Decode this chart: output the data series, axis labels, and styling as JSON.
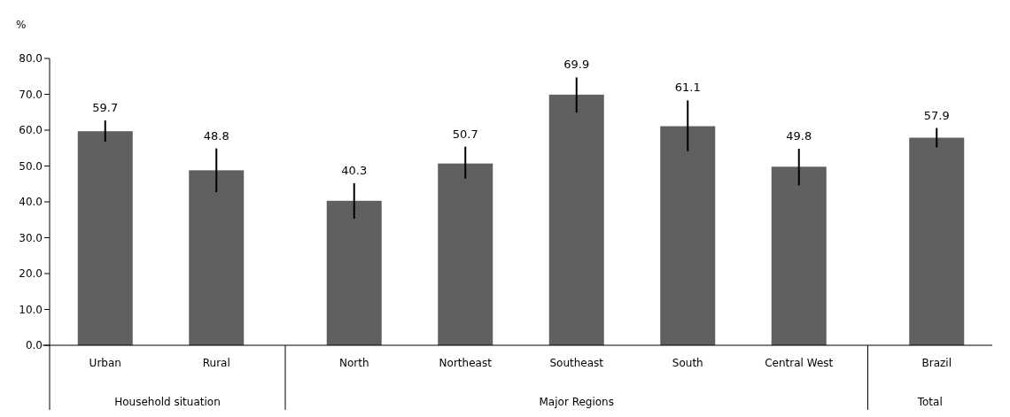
{
  "chart_data": {
    "type": "bar",
    "ylabel": "%",
    "categories": [
      "Urban",
      "Rural",
      "North",
      "Northeast",
      "Southeast",
      "South",
      "Central West",
      "Brazil"
    ],
    "values": [
      59.7,
      48.8,
      40.3,
      50.7,
      69.9,
      61.1,
      49.8,
      57.9
    ],
    "errors": [
      [
        56.8,
        62.7
      ],
      [
        42.7,
        54.9
      ],
      [
        35.3,
        45.2
      ],
      [
        46.5,
        55.4
      ],
      [
        64.9,
        74.7
      ],
      [
        54.1,
        68.3
      ],
      [
        44.6,
        54.8
      ],
      [
        55.2,
        60.6
      ]
    ],
    "color": "#606060",
    "data_labels": true,
    "ylim": [
      0,
      80
    ],
    "yticks": [
      {
        "value": 0,
        "label": "0.0"
      },
      {
        "value": 10,
        "label": "10.0"
      },
      {
        "value": 20,
        "label": "20.0"
      },
      {
        "value": 30,
        "label": "30.0"
      },
      {
        "value": 40,
        "label": "40.0"
      },
      {
        "value": 50,
        "label": "50.0"
      },
      {
        "value": 60,
        "label": "60.0"
      },
      {
        "value": 70,
        "label": "70.0"
      },
      {
        "value": 80,
        "label": "80.0"
      }
    ],
    "grid": false,
    "annotations": [
      "Household situation",
      "Major Regions",
      "Total"
    ]
  }
}
